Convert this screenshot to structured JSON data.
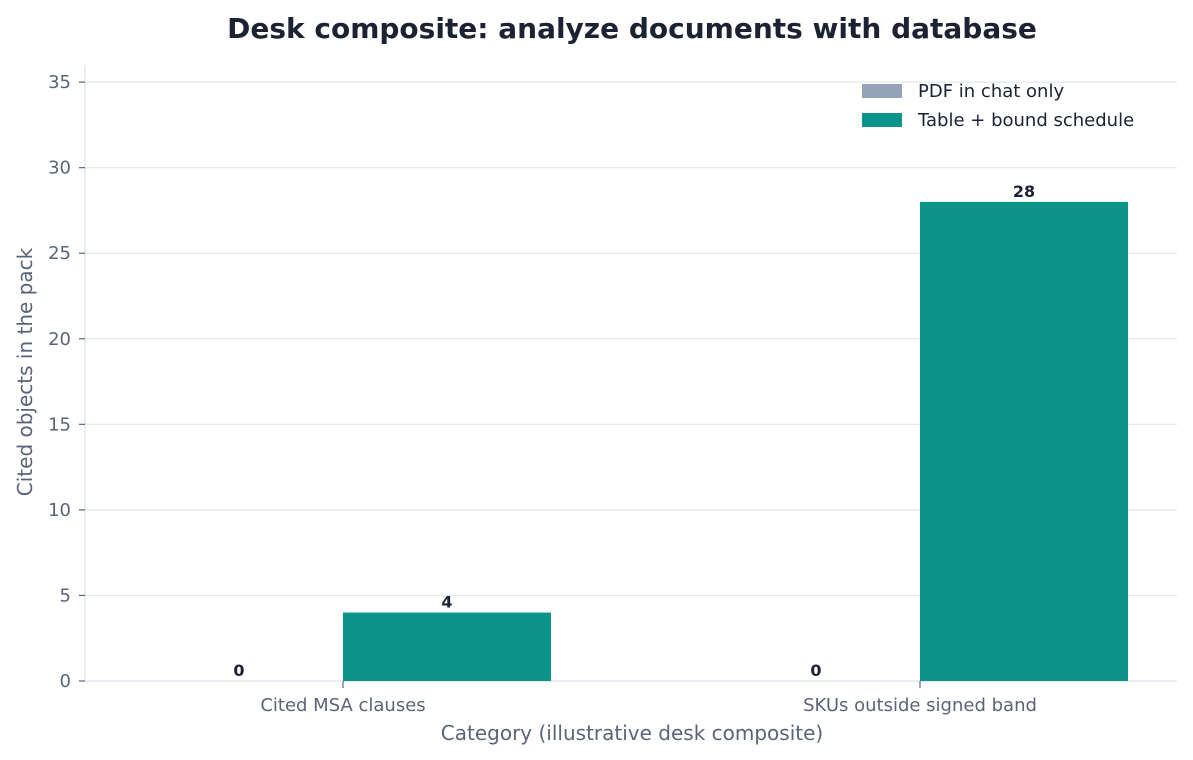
{
  "chart_data": {
    "type": "bar",
    "title": "Desk composite: analyze documents with database",
    "xlabel": "Category (illustrative desk composite)",
    "ylabel": "Cited objects in the pack",
    "categories": [
      "Cited MSA clauses",
      "SKUs outside signed band"
    ],
    "series": [
      {
        "name": "PDF in chat only",
        "values": [
          0,
          0
        ],
        "color": "#94a3b8"
      },
      {
        "name": "Table + bound schedule",
        "values": [
          4,
          28
        ],
        "color": "#0d9488"
      }
    ],
    "ylim": [
      0,
      36
    ],
    "yticks": [
      0,
      5,
      10,
      15,
      20,
      25,
      30,
      35
    ],
    "grid": true,
    "legend_position": "top-right"
  }
}
